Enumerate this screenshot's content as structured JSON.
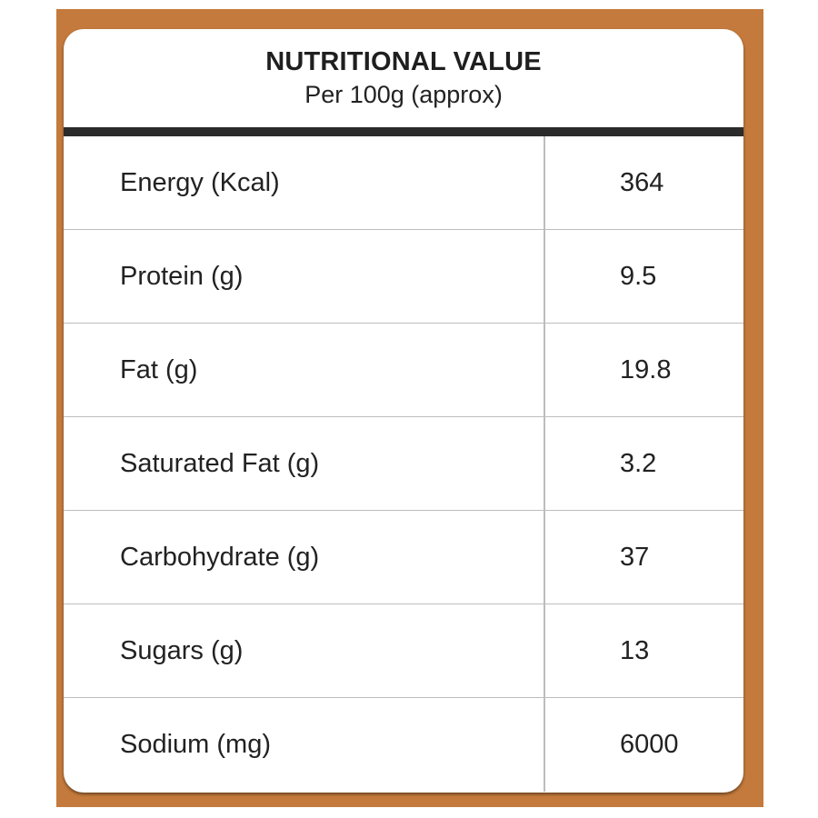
{
  "colors": {
    "backdrop": "#c47a3c",
    "card": "#ffffff",
    "divider_bar": "#2b2b2b",
    "grid": "#bdbdbd",
    "text": "#222222"
  },
  "label": {
    "title": "NUTRITIONAL VALUE",
    "subtitle": "Per 100g (approx)",
    "rows": [
      {
        "nutrient": "Energy (Kcal)",
        "value": "364"
      },
      {
        "nutrient": "Protein (g)",
        "value": "9.5"
      },
      {
        "nutrient": "Fat (g)",
        "value": "19.8"
      },
      {
        "nutrient": "Saturated Fat (g)",
        "value": "3.2"
      },
      {
        "nutrient": "Carbohydrate (g)",
        "value": "37"
      },
      {
        "nutrient": "Sugars (g)",
        "value": "13"
      },
      {
        "nutrient": "Sodium (mg)",
        "value": "6000"
      }
    ]
  }
}
